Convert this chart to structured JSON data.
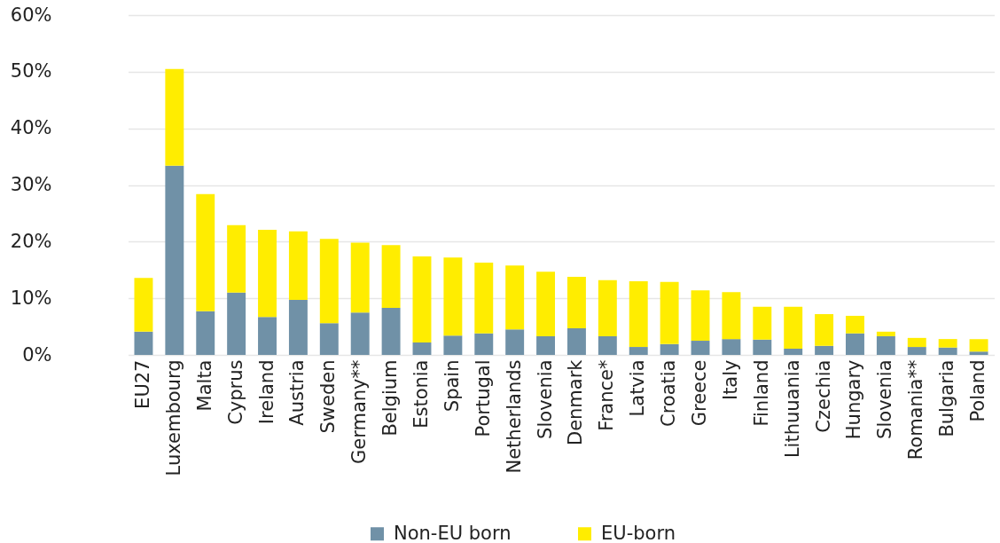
{
  "chart_data": {
    "type": "bar",
    "stacked": true,
    "categories": [
      "EU27",
      "Luxembourg",
      "Malta",
      "Cyprus",
      "Ireland",
      "Austria",
      "Sweden",
      "Germany**",
      "Belgium",
      "Estonia",
      "Spain",
      "Portugal",
      "Netherlands",
      "Slovenia",
      "Denmark",
      "France*",
      "Latvia",
      "Croatia",
      "Greece",
      "Italy",
      "Finland",
      "Lithuuania",
      "Czechia",
      "Hungary",
      "Slovenia",
      "Romania**",
      "Bulgaria",
      "Poland"
    ],
    "series": [
      {
        "name": "Non-EU born",
        "color": "#7091a7",
        "values": [
          4.1,
          33.4,
          7.7,
          11.0,
          6.7,
          9.7,
          5.6,
          7.5,
          8.3,
          2.2,
          3.4,
          3.8,
          4.5,
          3.3,
          4.7,
          3.3,
          1.4,
          1.9,
          2.5,
          2.8,
          2.7,
          1.1,
          1.6,
          3.8,
          3.3,
          1.4,
          1.3,
          0.6
        ]
      },
      {
        "name": "EU-born",
        "color": "#ffed00",
        "values": [
          9.5,
          17.1,
          20.7,
          11.9,
          15.4,
          12.1,
          14.9,
          12.3,
          11.1,
          15.2,
          13.8,
          12.5,
          11.3,
          11.4,
          9.1,
          9.9,
          11.6,
          11.0,
          8.9,
          8.3,
          5.8,
          7.4,
          5.6,
          3.1,
          0.8,
          1.6,
          1.5,
          2.2
        ]
      }
    ],
    "ylim": [
      0,
      60
    ],
    "yticks": [
      {
        "value": 0,
        "label": "0%"
      },
      {
        "value": 10,
        "label": "10%"
      },
      {
        "value": 20,
        "label": "20%"
      },
      {
        "value": 30,
        "label": "30%"
      },
      {
        "value": 40,
        "label": "40%"
      },
      {
        "value": 50,
        "label": "50%"
      },
      {
        "value": 60,
        "label": "60%"
      }
    ],
    "grid": "y",
    "legend": "bottom"
  }
}
